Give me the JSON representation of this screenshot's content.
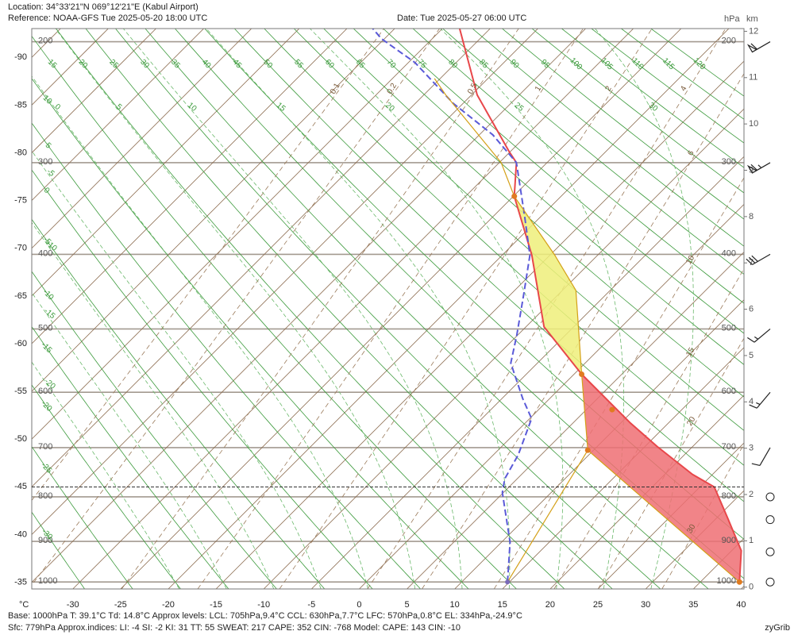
{
  "header": {
    "location": "Location:  34°33'21\"N  069°12'21\"E (Kabul Airport)",
    "reference": "Reference: NOAA-GFS Tue 2025-05-20 18:00 UTC",
    "date": "Date: Tue 2025-05-27 06:00 UTC"
  },
  "chart_data": {
    "type": "skew-t",
    "x_unit": "°C",
    "pressure_unit": "hPa",
    "height_unit": "km",
    "xlim": [
      -34.3,
      40.3
    ],
    "xticks": [
      -30,
      -25,
      -20,
      -15,
      -10,
      -5,
      0,
      5,
      10,
      15,
      20,
      25,
      30,
      35,
      40
    ],
    "left_ticks": [
      -35,
      -40,
      -45,
      -50,
      -55,
      -60,
      -65,
      -70,
      -75,
      -80,
      -85,
      -90
    ],
    "ylim": [
      1018,
      191
    ],
    "pressure_levels": [
      1000,
      900,
      800,
      700,
      600,
      500,
      400,
      300,
      200
    ],
    "height_ticks": [
      0,
      1,
      2,
      3,
      4,
      5,
      6,
      7,
      8,
      9,
      10,
      11,
      12
    ],
    "dry_adiabats": [
      -30,
      -25,
      -20,
      -15,
      -10,
      -5,
      0,
      5,
      10,
      15,
      20,
      25,
      30,
      35,
      40,
      45,
      50,
      55,
      60,
      65,
      70,
      75,
      80,
      85,
      90,
      95,
      100,
      105,
      110,
      115,
      120
    ],
    "moist_adiabats": [
      -20,
      -15,
      -10,
      -5,
      0,
      5,
      10,
      15,
      20,
      25,
      30
    ],
    "mixing_ratios": [
      0.1,
      0.2,
      0.5,
      1,
      2,
      4,
      6,
      10,
      15,
      20,
      30
    ],
    "surface_pressure": 779,
    "series": [
      {
        "color": "#e8474a",
        "dash": false,
        "width": 2,
        "p": [
          1000,
          922,
          847,
          779,
          753,
          698,
          653,
          570,
          497,
          401,
          334,
          300,
          289,
          240,
          191
        ],
        "t": [
          39.1,
          36.0,
          31.2,
          26.5,
          22.9,
          16.3,
          10.9,
          0.8,
          -8.1,
          -16.9,
          -24.9,
          -28.2,
          -30.2,
          -39.4,
          -48.2
        ]
      },
      {
        "color": "#5a5ad8",
        "dash": true,
        "width": 2,
        "p": [
          1000,
          902,
          791,
          762,
          714,
          646,
          611,
          552,
          509,
          452,
          401,
          354,
          300,
          274,
          247,
          215,
          198,
          191
        ],
        "t": [
          14.8,
          10.9,
          4.9,
          3.7,
          2.6,
          0.2,
          -2.8,
          -7.8,
          -10.1,
          -13.6,
          -17.1,
          -21.9,
          -28.2,
          -33.6,
          -41.0,
          -49.3,
          -55.3,
          -57.3
        ]
      },
      {
        "color": "#d4a017",
        "dash": false,
        "width": 1.2,
        "p": [
          1000,
          705,
          570,
          446,
          401,
          334,
          300,
          240,
          227
        ],
        "t": [
          39.1,
          9.4,
          0.8,
          -8.6,
          -14.5,
          -24.9,
          -29.8,
          -42.7,
          -45.6
        ]
      },
      {
        "color": "#d4a017",
        "dash": false,
        "width": 1.2,
        "p": [
          1000,
          705
        ],
        "t": [
          14.8,
          9.4
        ]
      }
    ],
    "levels": {
      "base": {
        "p": 1000,
        "t": 39.1
      },
      "lcl": {
        "p": 705,
        "t": 9.4
      },
      "ccl": {
        "p": 630,
        "t": 7.7
      },
      "lfc": {
        "p": 570,
        "t": 0.8
      },
      "el": {
        "p": 334,
        "t": -24.9
      }
    },
    "cin_color": "#ee6e73",
    "cape_color": "#eeee7a",
    "winds": [
      {
        "p": 200,
        "speed": 60,
        "dir": 240
      },
      {
        "p": 300,
        "speed": 65,
        "dir": 240
      },
      {
        "p": 400,
        "speed": 30,
        "dir": 240
      },
      {
        "p": 500,
        "speed": 15,
        "dir": 230
      },
      {
        "p": 600,
        "speed": 15,
        "dir": 220
      },
      {
        "p": 700,
        "speed": 10,
        "dir": 210
      },
      {
        "p": 800,
        "speed": 0,
        "dir": 0
      },
      {
        "p": 850,
        "speed": 0,
        "dir": 0
      },
      {
        "p": 925,
        "speed": 0,
        "dir": 0
      },
      {
        "p": 1000,
        "speed": 0,
        "dir": 0
      }
    ]
  },
  "footer": {
    "line1": "Base: 1000hPa  T: 39.1°C  Td: 14.8°C     Approx levels:  LCL: 705hPa,9.4°C   CCL: 630hPa,7.7°C   LFC: 570hPa,0.8°C   EL: 334hPa,-24.9°C",
    "line2": "Sfc: 779hPa          Approx.indices:  LI: -4   SI: -2   KI: 31   TT: 55   SWEAT: 217      CAPE: 352  CIN: -768         Model: CAPE: 143 CIN: -10",
    "credit": "zyGrib"
  }
}
